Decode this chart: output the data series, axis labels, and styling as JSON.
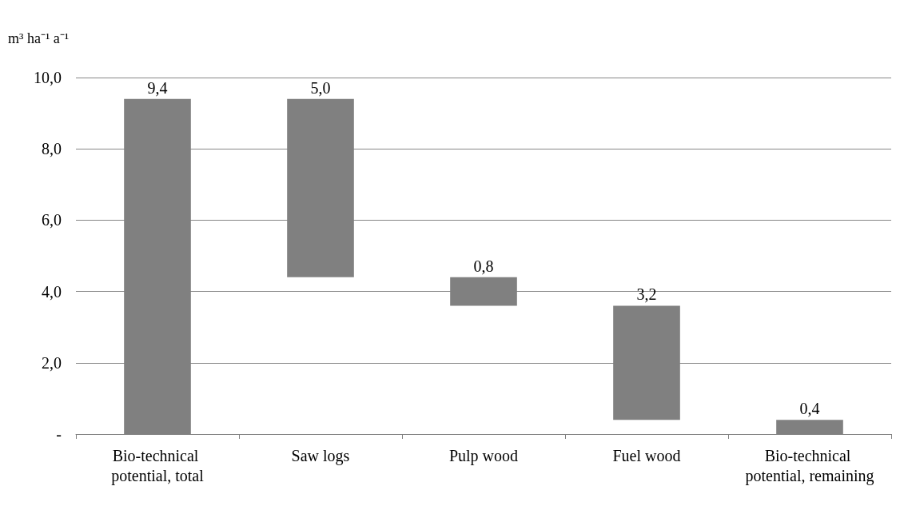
{
  "chart_data": {
    "type": "bar",
    "ylabel": "m³ ha⁻¹ a⁻¹",
    "categories": [
      "Bio-technical potential, total",
      "Saw logs",
      "Pulp wood",
      "Fuel wood",
      "Bio-technical potential, remaining"
    ],
    "values": [
      9.4,
      5.0,
      0.8,
      3.2,
      0.4
    ],
    "base": [
      0,
      4.4,
      3.6,
      0.4,
      0
    ],
    "value_labels": [
      "9,4",
      "5,0",
      "0,8",
      "3,2",
      "0,4"
    ],
    "color": "#808080",
    "ylim": [
      0,
      10
    ],
    "yticks": [
      {
        "value": 0,
        "label": "-"
      },
      {
        "value": 2,
        "label": "2,0"
      },
      {
        "value": 4,
        "label": "4,0"
      },
      {
        "value": 6,
        "label": "6,0"
      },
      {
        "value": 8,
        "label": "8,0"
      },
      {
        "value": 10,
        "label": "10,0"
      }
    ],
    "grid": "y"
  }
}
